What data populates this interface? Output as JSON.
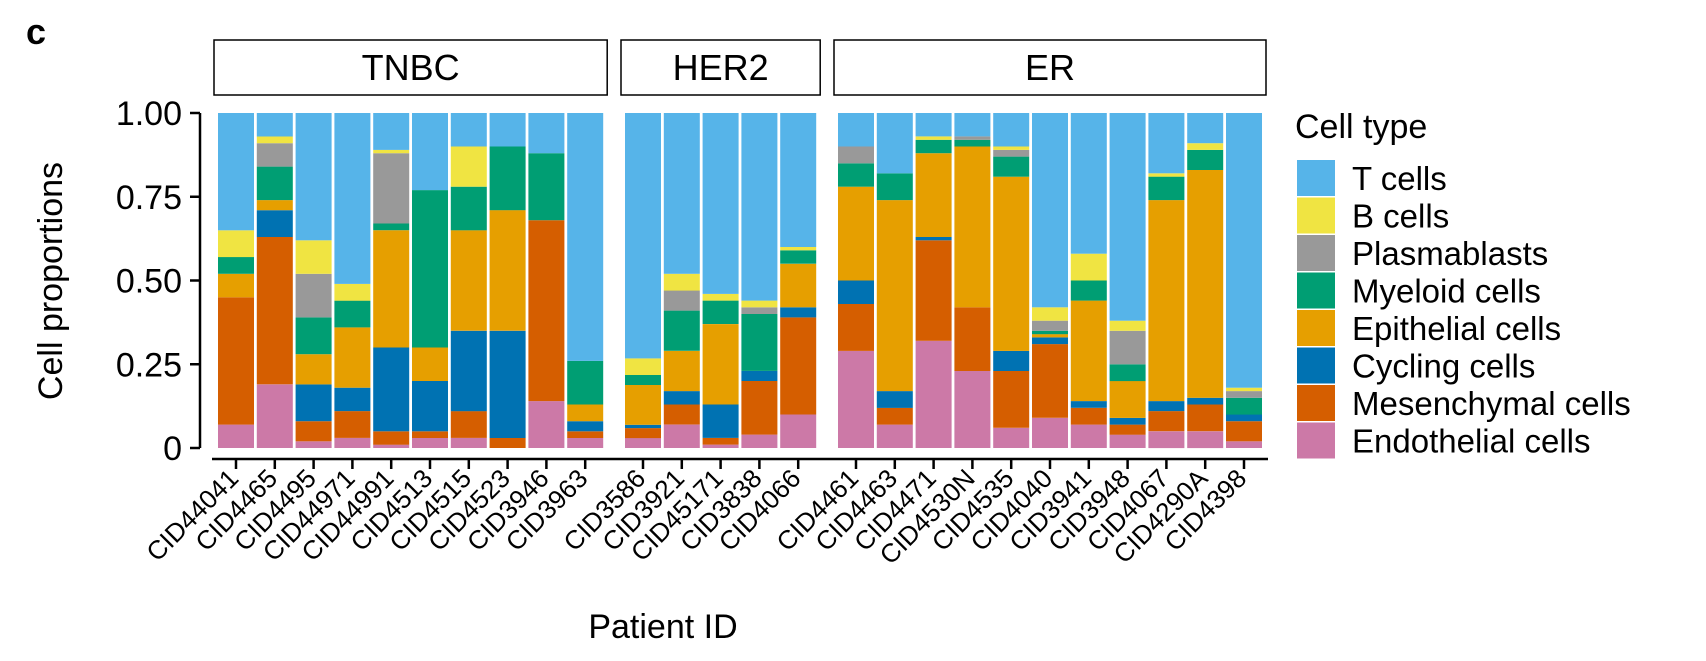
{
  "chart_data": {
    "type": "bar",
    "stacked": true,
    "panel_label": "c",
    "xlabel": "Patient ID",
    "ylabel": "Cell proportions",
    "ylim": [
      0,
      1
    ],
    "yticks": [
      0,
      0.25,
      0.5,
      0.75,
      1
    ],
    "ytick_labels": [
      "0",
      "0.25",
      "0.50",
      "0.75",
      "1.00"
    ],
    "facets": [
      "TNBC",
      "HER2",
      "ER"
    ],
    "legend": {
      "title": "Cell type",
      "placement": "right"
    },
    "series": [
      {
        "name": "Endothelial cells",
        "color": "#CC79A7"
      },
      {
        "name": "Mesenchymal cells",
        "color": "#D55E00"
      },
      {
        "name": "Cycling cells",
        "color": "#0072B2"
      },
      {
        "name": "Epithelial cells",
        "color": "#E69F00"
      },
      {
        "name": "Myeloid cells",
        "color": "#009E73"
      },
      {
        "name": "Plasmablasts",
        "color": "#999999"
      },
      {
        "name": "B cells",
        "color": "#F0E442"
      },
      {
        "name": "T cells",
        "color": "#56B4E9"
      }
    ],
    "legend_order": [
      "T cells",
      "B cells",
      "Plasmablasts",
      "Myeloid cells",
      "Epithelial cells",
      "Cycling cells",
      "Mesenchymal cells",
      "Endothelial cells"
    ],
    "bars": [
      {
        "facet": "TNBC",
        "id": "CID44041",
        "values": [
          0.07,
          0.38,
          0.0,
          0.07,
          0.05,
          0.0,
          0.08,
          0.35
        ]
      },
      {
        "facet": "TNBC",
        "id": "CID4465",
        "values": [
          0.19,
          0.44,
          0.08,
          0.03,
          0.1,
          0.07,
          0.02,
          0.07
        ]
      },
      {
        "facet": "TNBC",
        "id": "CID4495",
        "values": [
          0.02,
          0.06,
          0.11,
          0.09,
          0.11,
          0.13,
          0.1,
          0.38
        ]
      },
      {
        "facet": "TNBC",
        "id": "CID44971",
        "values": [
          0.03,
          0.08,
          0.07,
          0.18,
          0.08,
          0.0,
          0.05,
          0.51
        ]
      },
      {
        "facet": "TNBC",
        "id": "CID44991",
        "values": [
          0.01,
          0.04,
          0.25,
          0.35,
          0.02,
          0.21,
          0.01,
          0.11
        ]
      },
      {
        "facet": "TNBC",
        "id": "CID4513",
        "values": [
          0.03,
          0.02,
          0.15,
          0.1,
          0.47,
          0.0,
          0.0,
          0.23
        ]
      },
      {
        "facet": "TNBC",
        "id": "CID4515",
        "values": [
          0.03,
          0.08,
          0.24,
          0.3,
          0.13,
          0.0,
          0.12,
          0.1
        ]
      },
      {
        "facet": "TNBC",
        "id": "CID4523",
        "values": [
          0.0,
          0.03,
          0.32,
          0.36,
          0.19,
          0.0,
          0.0,
          0.1
        ]
      },
      {
        "facet": "TNBC",
        "id": "CID3946",
        "values": [
          0.14,
          0.54,
          0.0,
          0.0,
          0.2,
          0.0,
          0.0,
          0.12
        ]
      },
      {
        "facet": "TNBC",
        "id": "CID3963",
        "values": [
          0.03,
          0.02,
          0.03,
          0.05,
          0.13,
          0.0,
          0.0,
          0.74
        ]
      },
      {
        "facet": "HER2",
        "id": "CID3586",
        "values": [
          0.03,
          0.03,
          0.01,
          0.12,
          0.03,
          0.0,
          0.05,
          0.74
        ]
      },
      {
        "facet": "HER2",
        "id": "CID3921",
        "values": [
          0.07,
          0.06,
          0.04,
          0.12,
          0.12,
          0.06,
          0.05,
          0.48
        ]
      },
      {
        "facet": "HER2",
        "id": "CID45171",
        "values": [
          0.01,
          0.02,
          0.1,
          0.24,
          0.07,
          0.0,
          0.02,
          0.54
        ]
      },
      {
        "facet": "HER2",
        "id": "CID3838",
        "values": [
          0.04,
          0.16,
          0.03,
          0.0,
          0.17,
          0.02,
          0.02,
          0.56
        ]
      },
      {
        "facet": "HER2",
        "id": "CID4066",
        "values": [
          0.1,
          0.29,
          0.03,
          0.13,
          0.04,
          0.0,
          0.01,
          0.4
        ]
      },
      {
        "facet": "ER",
        "id": "CID4461",
        "values": [
          0.29,
          0.14,
          0.07,
          0.28,
          0.07,
          0.05,
          0.0,
          0.1
        ]
      },
      {
        "facet": "ER",
        "id": "CID4463",
        "values": [
          0.07,
          0.05,
          0.05,
          0.57,
          0.08,
          0.0,
          0.0,
          0.18
        ]
      },
      {
        "facet": "ER",
        "id": "CID4471",
        "values": [
          0.32,
          0.3,
          0.01,
          0.25,
          0.04,
          0.0,
          0.01,
          0.07
        ]
      },
      {
        "facet": "ER",
        "id": "CID4530N",
        "values": [
          0.23,
          0.19,
          0.0,
          0.48,
          0.02,
          0.01,
          0.0,
          0.07
        ]
      },
      {
        "facet": "ER",
        "id": "CID4535",
        "values": [
          0.06,
          0.17,
          0.06,
          0.52,
          0.06,
          0.02,
          0.01,
          0.1
        ]
      },
      {
        "facet": "ER",
        "id": "CID4040",
        "values": [
          0.09,
          0.22,
          0.02,
          0.01,
          0.01,
          0.03,
          0.04,
          0.58
        ]
      },
      {
        "facet": "ER",
        "id": "CID3941",
        "values": [
          0.07,
          0.05,
          0.02,
          0.3,
          0.06,
          0.0,
          0.08,
          0.42
        ]
      },
      {
        "facet": "ER",
        "id": "CID3948",
        "values": [
          0.04,
          0.03,
          0.02,
          0.11,
          0.05,
          0.1,
          0.03,
          0.62
        ]
      },
      {
        "facet": "ER",
        "id": "CID4067",
        "values": [
          0.05,
          0.06,
          0.03,
          0.6,
          0.07,
          0.0,
          0.01,
          0.18
        ]
      },
      {
        "facet": "ER",
        "id": "CID4290A",
        "values": [
          0.05,
          0.08,
          0.02,
          0.68,
          0.06,
          0.0,
          0.02,
          0.09
        ]
      },
      {
        "facet": "ER",
        "id": "CID4398",
        "values": [
          0.02,
          0.06,
          0.02,
          0.0,
          0.05,
          0.02,
          0.01,
          0.82
        ]
      }
    ]
  }
}
